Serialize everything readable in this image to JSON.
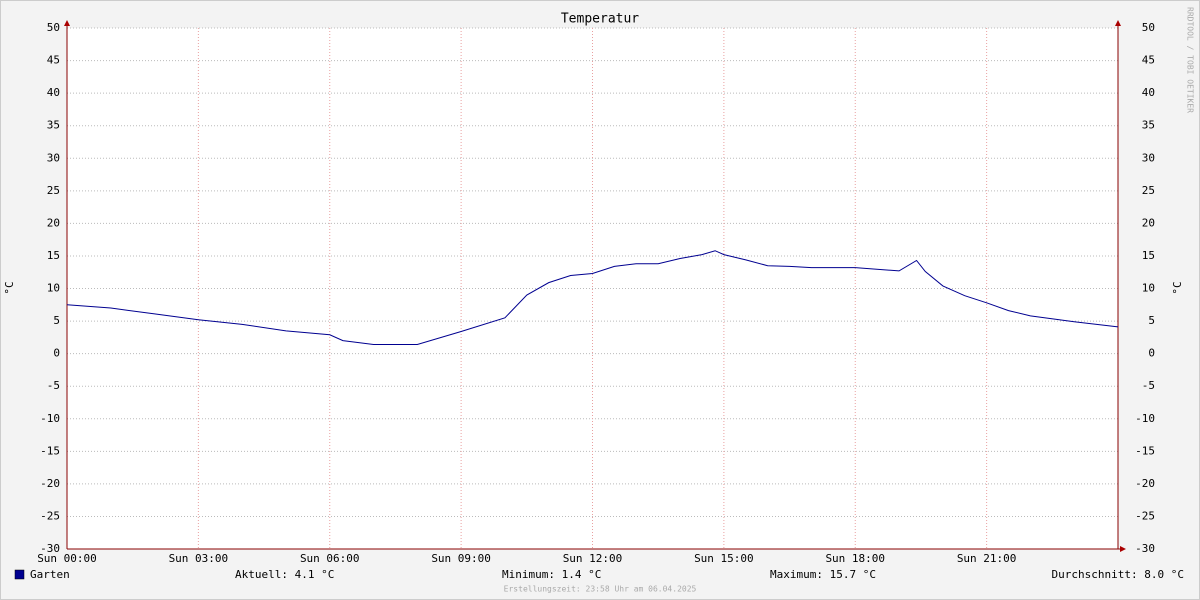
{
  "chart_data": {
    "type": "line",
    "title": "Temperatur",
    "y_label": "°C",
    "watermark": "RRDTOOL / TOBI OETIKER",
    "x": [
      0,
      1,
      2,
      3,
      4,
      5,
      6,
      6.3,
      7,
      8,
      9,
      10,
      10.5,
      11,
      11.5,
      12,
      12.5,
      13,
      13.5,
      14,
      14.5,
      14.8,
      15,
      15.5,
      16,
      16.5,
      17,
      18,
      19,
      19.4,
      19.6,
      20,
      20.5,
      21,
      21.5,
      22,
      23,
      24
    ],
    "series": [
      {
        "name": "Garten",
        "color": "#000090",
        "values": [
          7.5,
          7.0,
          6.1,
          5.2,
          4.5,
          3.5,
          2.9,
          2.0,
          1.4,
          1.4,
          3.4,
          5.5,
          9.0,
          10.9,
          12.0,
          12.3,
          13.4,
          13.8,
          13.8,
          14.6,
          15.2,
          15.8,
          15.2,
          14.4,
          13.5,
          13.4,
          13.2,
          13.2,
          12.7,
          14.3,
          12.6,
          10.4,
          8.9,
          7.8,
          6.6,
          5.8,
          4.9,
          4.1
        ]
      }
    ],
    "xlim": [
      0,
      24
    ],
    "xticks": [
      {
        "value": 0,
        "label": "Sun 00:00"
      },
      {
        "value": 3,
        "label": "Sun 03:00"
      },
      {
        "value": 6,
        "label": "Sun 06:00"
      },
      {
        "value": 9,
        "label": "Sun 09:00"
      },
      {
        "value": 12,
        "label": "Sun 12:00"
      },
      {
        "value": 15,
        "label": "Sun 15:00"
      },
      {
        "value": 18,
        "label": "Sun 18:00"
      },
      {
        "value": 21,
        "label": "Sun 21:00"
      }
    ],
    "ylim": [
      -30,
      50
    ],
    "yticks": [
      -30,
      -25,
      -20,
      -15,
      -10,
      -5,
      0,
      5,
      10,
      15,
      20,
      25,
      30,
      35,
      40,
      45,
      50
    ],
    "grid": true,
    "stats": [
      "Aktuell: 4.1 °C",
      "Minimum: 1.4 °C",
      "Maximum: 15.7 °C",
      "Durchschnitt: 8.0 °C"
    ],
    "footer": "Erstellungszeit: 23:58 Uhr am 06.04.2025"
  }
}
